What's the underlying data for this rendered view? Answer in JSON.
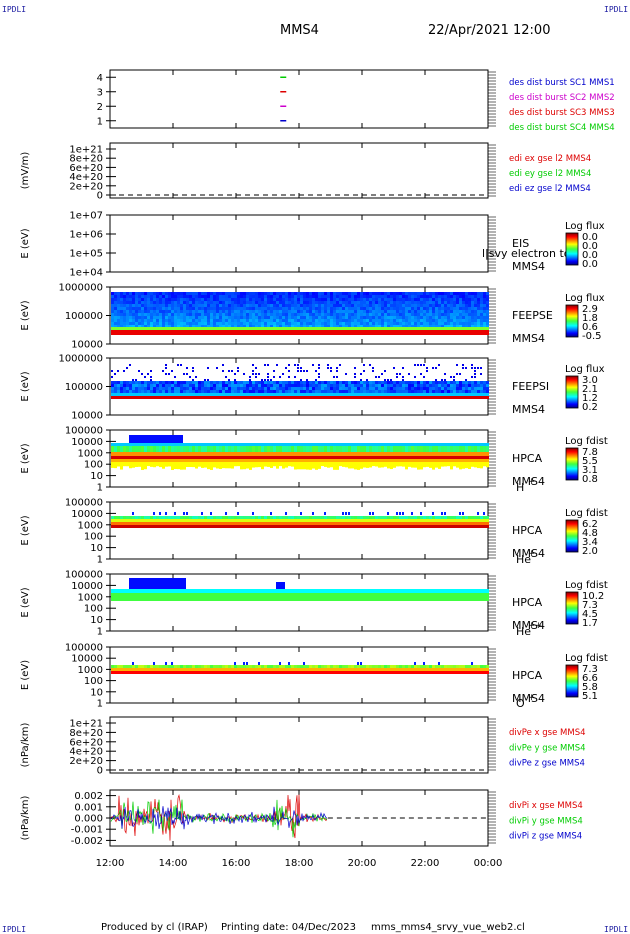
{
  "header": {
    "spacecraft": "MMS4",
    "date_time": "22/Apr/2021 12:00",
    "corner_tag": "IPDLI"
  },
  "footer": {
    "produced_by": "Produced by cl (IRAP)",
    "printing_date": "Printing date: 04/Dec/2023",
    "file_name": "mms_mms4_srvy_vue_web2.cl"
  },
  "colors": {
    "blue": "#0000cc",
    "magenta": "#cc00cc",
    "red": "#dd0000",
    "green": "#00cc00"
  },
  "chart_data": [
    {
      "type": "scatter",
      "id": "burst",
      "yticks": [
        "4",
        "3",
        "2",
        "1"
      ],
      "ylim": [
        0.5,
        4.5
      ],
      "legend": [
        {
          "text": "des dist burst SC1 MMS1",
          "color": "#0000cc"
        },
        {
          "text": "des dist burst SC2 MMS2",
          "color": "#cc00cc"
        },
        {
          "text": "des dist burst SC3 MMS3",
          "color": "#dd0000"
        },
        {
          "text": "des dist burst SC4 MMS4",
          "color": "#00cc00"
        }
      ],
      "points": [
        {
          "x": "17:30",
          "y": 4,
          "color": "#00cc00"
        },
        {
          "x": "17:30",
          "y": 3,
          "color": "#dd0000"
        },
        {
          "x": "17:30",
          "y": 2,
          "color": "#cc00cc"
        },
        {
          "x": "17:30",
          "y": 1,
          "color": "#0000cc"
        }
      ]
    },
    {
      "type": "line",
      "id": "edi",
      "ylabel": "(mV/m)",
      "yticks": [
        "1e+21",
        "8e+20",
        "6e+20",
        "4e+20",
        "2e+20",
        "0"
      ],
      "legend": [
        {
          "text": "edi ex gse l2 MMS4",
          "color": "#dd0000"
        },
        {
          "text": "edi ey gse l2 MMS4",
          "color": "#00cc00"
        },
        {
          "text": "edi ez gse l2 MMS4",
          "color": "#0000cc"
        }
      ]
    },
    {
      "type": "heatmap",
      "id": "eis",
      "ylabel": "E (eV)",
      "yticks": [
        "1e+07",
        "1e+06",
        "1e+05",
        "1e+04"
      ],
      "instrument": "EIS",
      "overlay_text": "l|svy electron to",
      "spacecraft": "MMS4",
      "colorbar_title": "Log flux",
      "colorbar_ticks": [
        "0.0",
        "0.0",
        "0.0",
        "0.0"
      ]
    },
    {
      "type": "heatmap",
      "id": "feepse",
      "ylabel": "E (eV)",
      "yticks": [
        "1000000",
        "100000",
        "10000"
      ],
      "instrument": "FEEPSE",
      "spacecraft": "MMS4",
      "colorbar_title": "Log flux",
      "colorbar_ticks": [
        "2.9",
        "1.8",
        "0.6",
        "-0.5"
      ]
    },
    {
      "type": "heatmap",
      "id": "feepsi",
      "ylabel": "E (eV)",
      "yticks": [
        "1000000",
        "100000",
        "10000"
      ],
      "instrument": "FEEPSI",
      "spacecraft": "MMS4",
      "colorbar_title": "Log flux",
      "colorbar_ticks": [
        "3.0",
        "2.1",
        "1.2",
        "0.2"
      ]
    },
    {
      "type": "heatmap",
      "id": "hpca_h",
      "ylabel": "E (eV)",
      "yticks": [
        "100000",
        "10000",
        "1000",
        "100",
        "10",
        "1"
      ],
      "instrument": "HPCA",
      "spacecraft": "MMS4",
      "species": "H",
      "species_charge": "+",
      "colorbar_title": "Log fdist",
      "colorbar_ticks": [
        "7.8",
        "5.5",
        "3.1",
        "0.8"
      ]
    },
    {
      "type": "heatmap",
      "id": "hpca_he",
      "ylabel": "E (eV)",
      "yticks": [
        "100000",
        "10000",
        "1000",
        "100",
        "10",
        "1"
      ],
      "instrument": "HPCA",
      "spacecraft": "MMS4",
      "species": "He",
      "species_charge": "+",
      "colorbar_title": "Log fdist",
      "colorbar_ticks": [
        "6.2",
        "4.8",
        "3.4",
        "2.0"
      ]
    },
    {
      "type": "heatmap",
      "id": "hpca_he2",
      "ylabel": "E (eV)",
      "yticks": [
        "100000",
        "10000",
        "1000",
        "100",
        "10",
        "1"
      ],
      "instrument": "HPCA",
      "spacecraft": "MMS4",
      "species": "He",
      "species_charge": "++",
      "colorbar_title": "Log fdist",
      "colorbar_ticks": [
        "10.2",
        "7.3",
        "4.5",
        "1.7"
      ]
    },
    {
      "type": "heatmap",
      "id": "hpca_o",
      "ylabel": "E (eV)",
      "yticks": [
        "100000",
        "10000",
        "1000",
        "100",
        "10",
        "1"
      ],
      "instrument": "HPCA",
      "spacecraft": "MMS4",
      "species": "O",
      "species_charge": "+",
      "colorbar_title": "Log fdist",
      "colorbar_ticks": [
        "7.3",
        "6.6",
        "5.8",
        "5.1"
      ]
    },
    {
      "type": "line",
      "id": "divpe",
      "ylabel": "(nPa/km)",
      "yticks": [
        "1e+21",
        "8e+20",
        "6e+20",
        "4e+20",
        "2e+20",
        "0"
      ],
      "legend": [
        {
          "text": "divPe x gse MMS4",
          "color": "#dd0000"
        },
        {
          "text": "divPe y gse MMS4",
          "color": "#00cc00"
        },
        {
          "text": "divPe z gse MMS4",
          "color": "#0000cc"
        }
      ]
    },
    {
      "type": "line",
      "id": "divpi",
      "ylabel": "(nPa/km)",
      "yticks": [
        "0.002",
        "0.001",
        "0.000",
        "-0.001",
        "-0.002"
      ],
      "ylim": [
        -0.0025,
        0.0025
      ],
      "data_extent_x": [
        "12:00",
        "18:55"
      ],
      "legend": [
        {
          "text": "divPi x gse MMS4",
          "color": "#dd0000"
        },
        {
          "text": "divPi y gse MMS4",
          "color": "#00cc00"
        },
        {
          "text": "divPi z gse MMS4",
          "color": "#0000cc"
        }
      ]
    }
  ],
  "x_axis": {
    "ticks": [
      "12:00",
      "14:00",
      "16:00",
      "18:00",
      "20:00",
      "22:00",
      "00:00"
    ]
  }
}
